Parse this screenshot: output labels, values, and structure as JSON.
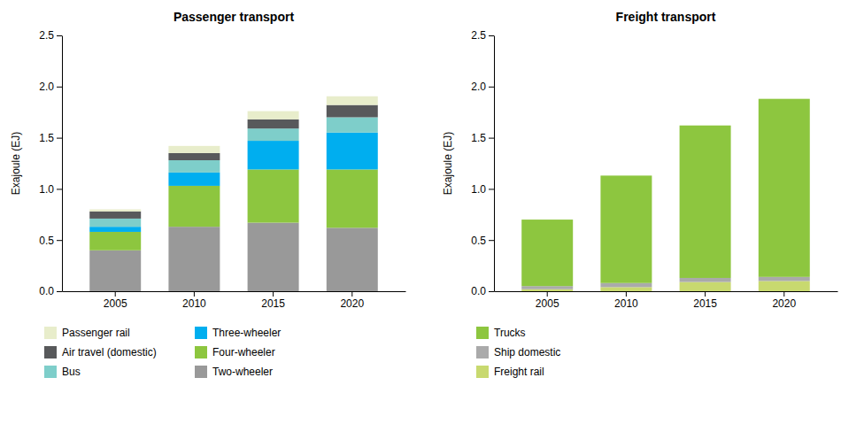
{
  "chart_data": [
    {
      "type": "bar",
      "title": "Passenger transport",
      "y_label": "Exajoule (EJ)",
      "categories": [
        "2005",
        "2010",
        "2015",
        "2020"
      ],
      "series": [
        {
          "name": "Two-wheeler",
          "color": "#999999",
          "values": [
            0.4,
            0.63,
            0.67,
            0.62
          ]
        },
        {
          "name": "Four-wheeler",
          "color": "#8dc63f",
          "values": [
            0.18,
            0.4,
            0.52,
            0.57
          ]
        },
        {
          "name": "Three-wheeler",
          "color": "#00aeef",
          "values": [
            0.05,
            0.13,
            0.28,
            0.36
          ]
        },
        {
          "name": "Bus",
          "color": "#7ececa",
          "values": [
            0.08,
            0.12,
            0.12,
            0.15
          ]
        },
        {
          "name": "Air travel (domestic)",
          "color": "#58595b",
          "values": [
            0.07,
            0.07,
            0.09,
            0.12
          ]
        },
        {
          "name": "Passenger rail",
          "color": "#e8edcb",
          "values": [
            0.02,
            0.07,
            0.08,
            0.085
          ]
        }
      ],
      "stacked": true,
      "grid": false,
      "legend": "below",
      "ylim": [
        0,
        2.5
      ],
      "yticks": [
        {
          "value": 0,
          "label": "0.0"
        },
        0.5,
        {
          "value": 1,
          "label": "1.0"
        },
        1.5,
        {
          "value": 2,
          "label": "2.0"
        },
        2.5
      ]
    },
    {
      "type": "bar",
      "title": "Freight transport",
      "y_label": "Exajoule (EJ)",
      "categories": [
        "2005",
        "2010",
        "2015",
        "2020"
      ],
      "series": [
        {
          "name": "Freight rail",
          "color": "#c8d96f",
          "values": [
            0.02,
            0.04,
            0.09,
            0.1
          ]
        },
        {
          "name": "Ship domestic",
          "color": "#aaaaaa",
          "values": [
            0.03,
            0.04,
            0.04,
            0.04
          ]
        },
        {
          "name": "Trucks",
          "color": "#8dc63f",
          "values": [
            0.65,
            1.05,
            1.49,
            1.74
          ]
        }
      ],
      "stacked": true,
      "grid": false,
      "legend": "below",
      "ylim": [
        0,
        2.5
      ],
      "yticks": [
        {
          "value": 0,
          "label": "0.0"
        },
        0.5,
        {
          "value": 1,
          "label": "1.0"
        },
        1.5,
        {
          "value": 2,
          "label": "2.0"
        },
        2.5
      ]
    }
  ]
}
